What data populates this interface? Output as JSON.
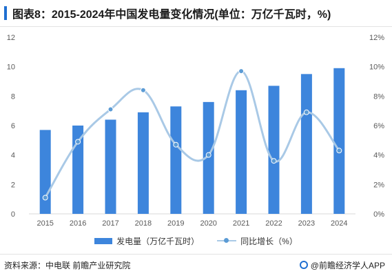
{
  "title": "图表8：2015-2024年中国发电量变化情况(单位：万亿千瓦时，%)",
  "source": "资料来源：中电联 前瞻产业研究院",
  "brand": "@前瞻经济学人APP",
  "colors": {
    "bar": "#3d85dc",
    "line": "#a9c9e6",
    "point": "#5b9bd5",
    "accent": "#1f6fd1"
  },
  "chart_data": {
    "type": "bar",
    "categories": [
      "2015",
      "2016",
      "2017",
      "2018",
      "2019",
      "2020",
      "2021",
      "2022",
      "2023",
      "2024"
    ],
    "series": [
      {
        "name": "发电量（万亿千瓦时）",
        "type": "bar",
        "axis": "left",
        "values": [
          5.7,
          6.0,
          6.4,
          6.9,
          7.3,
          7.6,
          8.4,
          8.7,
          9.5,
          9.9
        ]
      },
      {
        "name": "同比增长（%）",
        "type": "line",
        "axis": "right",
        "smooth": true,
        "values": [
          1.1,
          4.9,
          7.1,
          8.4,
          4.7,
          4.0,
          9.7,
          3.6,
          6.9,
          4.3
        ]
      }
    ],
    "y_left": {
      "min": 0,
      "max": 12,
      "ticks": [
        "0",
        "2",
        "4",
        "6",
        "8",
        "10",
        "12"
      ]
    },
    "y_right": {
      "min": 0,
      "max": 12,
      "ticks": [
        "0%",
        "2%",
        "4%",
        "6%",
        "8%",
        "10%",
        "12%"
      ]
    },
    "legend_position": "bottom-center",
    "grid": false
  }
}
